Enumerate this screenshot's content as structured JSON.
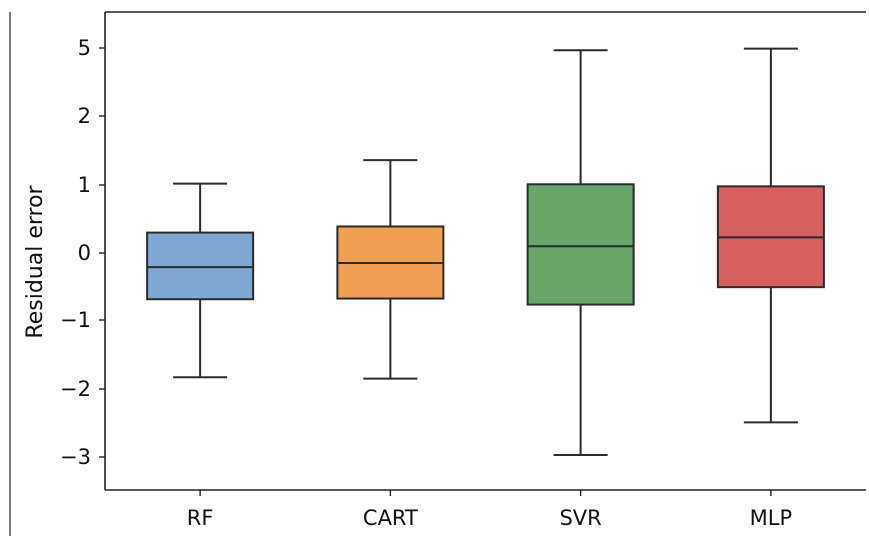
{
  "chart_data": {
    "type": "box",
    "title": "",
    "xlabel": "",
    "ylabel": "Residual error",
    "categories": [
      "RF",
      "CART",
      "SVR",
      "MLP"
    ],
    "y_tick_labels": [
      "5",
      "2",
      "1",
      "0",
      "−1",
      "−2",
      "−3"
    ],
    "y_tick_values": [
      5,
      2,
      1,
      0,
      -1,
      -2,
      -3
    ],
    "y_scale_note": "non-linear: 5 and 2 spaced like integers above 1",
    "ylim": [
      -3.5,
      5.5
    ],
    "grid": false,
    "legend": "none",
    "boxes": [
      {
        "name": "RF",
        "whisker_low": -1.83,
        "q1": -0.69,
        "median": -0.21,
        "q3": 0.3,
        "whisker_high": 1.02,
        "color": "#7ea6d3"
      },
      {
        "name": "CART",
        "whisker_low": -1.85,
        "q1": -0.68,
        "median": -0.15,
        "q3": 0.39,
        "whisker_high": 1.36,
        "color": "#ef9f51"
      },
      {
        "name": "SVR",
        "whisker_low": -3.03,
        "q1": -0.77,
        "median": 0.1,
        "q3": 1.01,
        "whisker_high": 4.9,
        "color": "#67a86a"
      },
      {
        "name": "MLP",
        "whisker_low": -2.49,
        "q1": -0.51,
        "median": 0.23,
        "q3": 0.98,
        "whisker_high": 4.97,
        "color": "#d75f5f"
      }
    ]
  }
}
